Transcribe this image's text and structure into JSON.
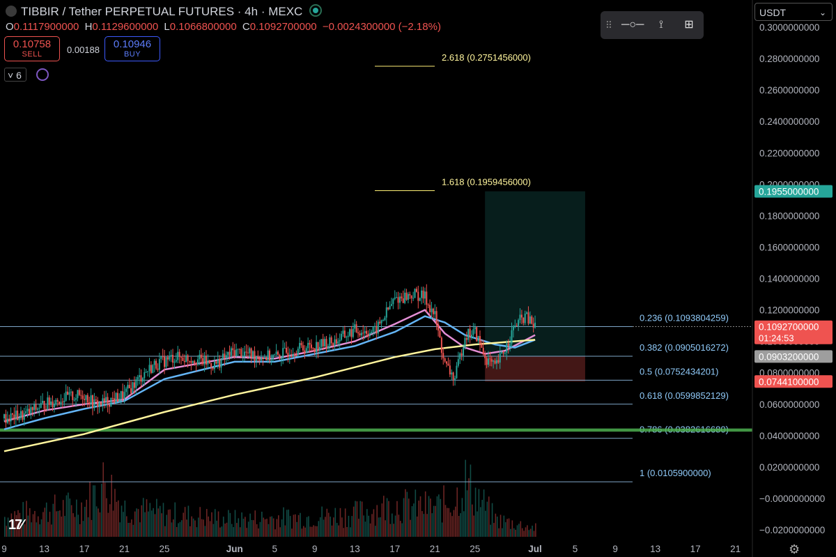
{
  "header": {
    "title": "TIBBIR / Tether PERPETUAL FUTURES · 4h · MEXC",
    "open_k": "O",
    "open": "0.1117900000",
    "high_k": "H",
    "high": "0.1129600000",
    "low_k": "L",
    "low": "0.1066800000",
    "close_k": "C",
    "close": "0.1092700000",
    "change": "−0.0024300000 (−2.18%)"
  },
  "trade": {
    "sell_price": "0.10758",
    "sell_label": "SELL",
    "spread": "0.00188",
    "buy_price": "0.10946",
    "buy_label": "BUY"
  },
  "indicators": {
    "count": "6"
  },
  "currency": {
    "selected": "USDT"
  },
  "colors": {
    "background": "#000000",
    "up": "#26a69a",
    "down": "#ef5350",
    "ma_fast": "#e48fd6",
    "ma_mid": "#64b5f6",
    "ma_slow": "#fff59d",
    "fib": "#90caf9",
    "support_zone": "#4caf50"
  },
  "chart_data": {
    "type": "line",
    "xlim": [
      "May 9",
      "Jul 22"
    ],
    "ylim": [
      -0.03,
      0.31
    ],
    "y_ticks": [
      "0.3000000000",
      "0.2800000000",
      "0.2600000000",
      "0.2400000000",
      "0.2200000000",
      "0.2000000000",
      "0.1800000000",
      "0.1600000000",
      "0.1400000000",
      "0.1200000000",
      "0.1000000000",
      "0.0800000000",
      "0.0600000000",
      "0.0400000000",
      "0.0200000000",
      "−0.0000000000",
      "−0.0200000000"
    ],
    "y_tick_values": [
      0.3,
      0.28,
      0.26,
      0.24,
      0.22,
      0.2,
      0.18,
      0.16,
      0.14,
      0.12,
      0.1,
      0.08,
      0.06,
      0.04,
      0.02,
      0.0,
      -0.02
    ],
    "x_ticks": [
      "9",
      "13",
      "17",
      "21",
      "25",
      "Jun",
      "5",
      "9",
      "13",
      "17",
      "21",
      "25",
      "Jul",
      "5",
      "9",
      "13",
      "17",
      "21"
    ],
    "x_tick_dates": [
      "2025-05-09",
      "2025-05-13",
      "2025-05-17",
      "2025-05-21",
      "2025-05-25",
      "2025-06-01",
      "2025-06-05",
      "2025-06-09",
      "2025-06-13",
      "2025-06-17",
      "2025-06-21",
      "2025-06-25",
      "2025-07-01",
      "2025-07-05",
      "2025-07-09",
      "2025-07-13",
      "2025-07-17",
      "2025-07-21"
    ],
    "price_path": [
      [
        "2025-05-09",
        0.051
      ],
      [
        "2025-05-11",
        0.053
      ],
      [
        "2025-05-13",
        0.06
      ],
      [
        "2025-05-15",
        0.064
      ],
      [
        "2025-05-17",
        0.066
      ],
      [
        "2025-05-18",
        0.06
      ],
      [
        "2025-05-19",
        0.061
      ],
      [
        "2025-05-21",
        0.066
      ],
      [
        "2025-05-23",
        0.08
      ],
      [
        "2025-05-24",
        0.085
      ],
      [
        "2025-05-26",
        0.09
      ],
      [
        "2025-05-28",
        0.089
      ],
      [
        "2025-05-30",
        0.085
      ],
      [
        "2025-06-01",
        0.094
      ],
      [
        "2025-06-03",
        0.091
      ],
      [
        "2025-06-05",
        0.09
      ],
      [
        "2025-06-07",
        0.095
      ],
      [
        "2025-06-09",
        0.097
      ],
      [
        "2025-06-11",
        0.1
      ],
      [
        "2025-06-13",
        0.107
      ],
      [
        "2025-06-15",
        0.106
      ],
      [
        "2025-06-17",
        0.127
      ],
      [
        "2025-06-19",
        0.13
      ],
      [
        "2025-06-20",
        0.128
      ],
      [
        "2025-06-21",
        0.116
      ],
      [
        "2025-06-22",
        0.085
      ],
      [
        "2025-06-23",
        0.076
      ],
      [
        "2025-06-24",
        0.104
      ],
      [
        "2025-06-25",
        0.106
      ],
      [
        "2025-06-26",
        0.09
      ],
      [
        "2025-06-27",
        0.083
      ],
      [
        "2025-06-28",
        0.095
      ],
      [
        "2025-06-29",
        0.11
      ],
      [
        "2025-06-30",
        0.116
      ],
      [
        "2025-07-01",
        0.1093
      ]
    ],
    "volume_path": [
      [
        "2025-05-09",
        0.35
      ],
      [
        "2025-05-13",
        0.45
      ],
      [
        "2025-05-17",
        0.55
      ],
      [
        "2025-05-19",
        0.95
      ],
      [
        "2025-05-21",
        0.5
      ],
      [
        "2025-05-25",
        0.4
      ],
      [
        "2025-06-01",
        0.3
      ],
      [
        "2025-06-09",
        0.35
      ],
      [
        "2025-06-13",
        0.4
      ],
      [
        "2025-06-17",
        0.55
      ],
      [
        "2025-06-21",
        0.5
      ],
      [
        "2025-06-23",
        0.65
      ],
      [
        "2025-06-24",
        0.95
      ],
      [
        "2025-06-27",
        0.3
      ],
      [
        "2025-07-01",
        0.15
      ]
    ],
    "series": [
      {
        "color": "#e48fd6",
        "points": [
          [
            "2025-05-09",
            0.049
          ],
          [
            "2025-05-13",
            0.056
          ],
          [
            "2025-05-17",
            0.06
          ],
          [
            "2025-05-21",
            0.063
          ],
          [
            "2025-05-25",
            0.082
          ],
          [
            "2025-06-01",
            0.09
          ],
          [
            "2025-06-05",
            0.089
          ],
          [
            "2025-06-09",
            0.094
          ],
          [
            "2025-06-13",
            0.1
          ],
          [
            "2025-06-17",
            0.111
          ],
          [
            "2025-06-20",
            0.12
          ],
          [
            "2025-06-22",
            0.105
          ],
          [
            "2025-06-24",
            0.096
          ],
          [
            "2025-06-26",
            0.092
          ],
          [
            "2025-06-28",
            0.094
          ],
          [
            "2025-07-01",
            0.104
          ]
        ]
      },
      {
        "color": "#64b5f6",
        "points": [
          [
            "2025-05-09",
            0.044
          ],
          [
            "2025-05-13",
            0.051
          ],
          [
            "2025-05-17",
            0.057
          ],
          [
            "2025-05-21",
            0.062
          ],
          [
            "2025-05-25",
            0.076
          ],
          [
            "2025-06-01",
            0.087
          ],
          [
            "2025-06-05",
            0.087
          ],
          [
            "2025-06-09",
            0.092
          ],
          [
            "2025-06-13",
            0.097
          ],
          [
            "2025-06-17",
            0.106
          ],
          [
            "2025-06-20",
            0.116
          ],
          [
            "2025-06-22",
            0.112
          ],
          [
            "2025-06-24",
            0.104
          ],
          [
            "2025-06-27",
            0.098
          ],
          [
            "2025-06-29",
            0.096
          ],
          [
            "2025-07-01",
            0.101
          ]
        ]
      },
      {
        "color": "#fff59d",
        "points": [
          [
            "2025-05-09",
            0.03
          ],
          [
            "2025-05-17",
            0.041
          ],
          [
            "2025-05-25",
            0.055
          ],
          [
            "2025-06-01",
            0.066
          ],
          [
            "2025-06-09",
            0.077
          ],
          [
            "2025-06-17",
            0.09
          ],
          [
            "2025-06-21",
            0.095
          ],
          [
            "2025-06-25",
            0.098
          ],
          [
            "2025-07-01",
            0.101
          ]
        ]
      }
    ],
    "fib_levels": [
      {
        "label": "0.236 (0.1093804259)",
        "value": 0.1093804259
      },
      {
        "label": "0.382 (0.0905016272)",
        "value": 0.0905016272
      },
      {
        "label": "0.5 (0.0752434201)",
        "value": 0.0752434201
      },
      {
        "label": "0.618 (0.0599852129)",
        "value": 0.0599852129
      },
      {
        "label": "0.786 (0.0382616680)",
        "value": 0.038261668
      },
      {
        "label": "1 (0.0105900000)",
        "value": 0.01059
      }
    ],
    "fib_extensions": [
      {
        "label": "2.618 (0.2751456000)",
        "value": 0.2751456
      },
      {
        "label": "1.618 (0.1959456000)",
        "value": 0.1959456
      }
    ],
    "support_zone": {
      "from": 0.0425,
      "to": 0.0445
    },
    "position": {
      "start": "2025-06-26",
      "end": "2025-07-06",
      "entry": 0.0903,
      "target": 0.1955,
      "stop": 0.0744
    },
    "price_labels": [
      {
        "text": "0.1955000000",
        "value": 0.1955,
        "color": "#26a69a"
      },
      {
        "text": "0.1092700000",
        "sub": "01:24:53",
        "value": 0.10927,
        "color": "#ef5350"
      },
      {
        "text": "0.0903200000",
        "value": 0.09032,
        "color": "#9e9e9e"
      },
      {
        "text": "0.0744100000",
        "value": 0.07441,
        "color": "#ef5350"
      }
    ]
  }
}
